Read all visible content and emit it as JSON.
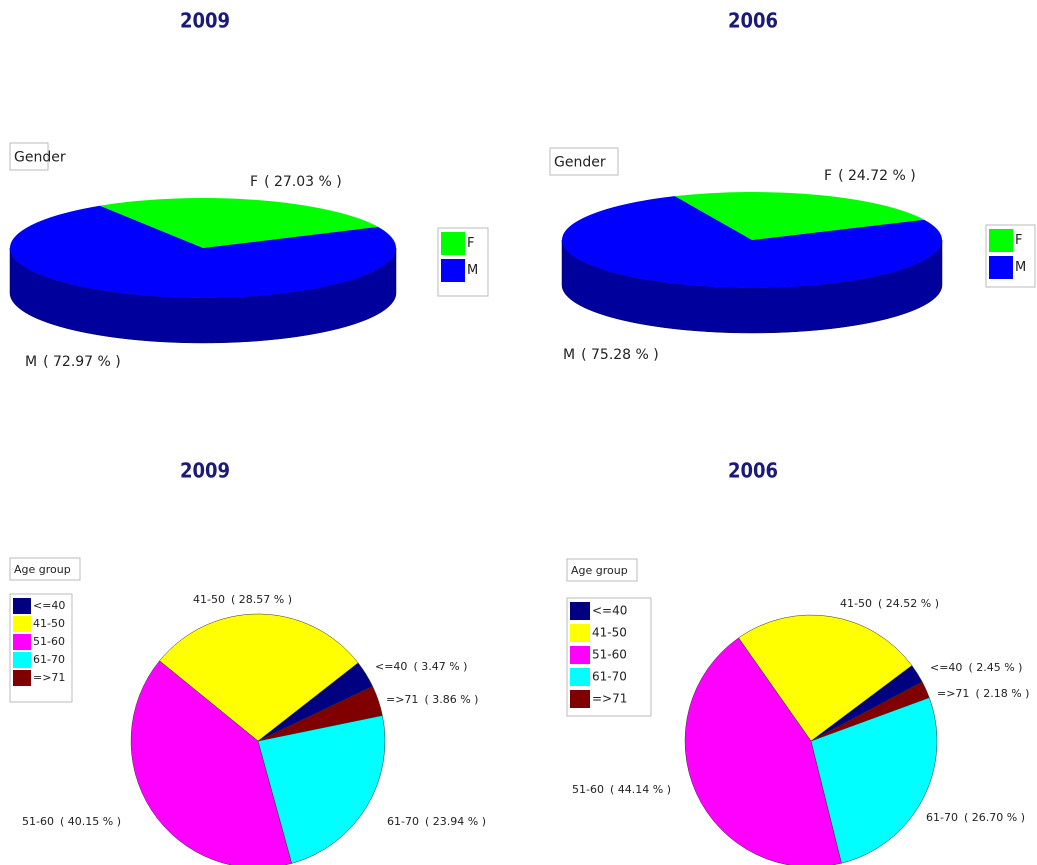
{
  "chart_data": [
    {
      "type": "pie",
      "three_d": true,
      "title": "2009",
      "legend_title": "Gender",
      "categories": [
        "F",
        "M"
      ],
      "values": [
        27.03,
        72.97
      ],
      "value_labels": [
        "( 27.03 % )",
        "( 72.97 % )"
      ],
      "colors": [
        "#00ff00",
        "#0000ff"
      ],
      "side_color": "#00009c"
    },
    {
      "type": "pie",
      "three_d": true,
      "title": "2006",
      "legend_title": "Gender",
      "categories": [
        "F",
        "M"
      ],
      "values": [
        24.72,
        75.28
      ],
      "value_labels": [
        "( 24.72 % )",
        "( 75.28 % )"
      ],
      "colors": [
        "#00ff00",
        "#0000ff"
      ],
      "side_color": "#00009c"
    },
    {
      "type": "pie",
      "three_d": false,
      "title": "2009",
      "legend_title": "Age group",
      "categories": [
        "<=40",
        "41-50",
        "51-60",
        "61-70",
        "=>71"
      ],
      "values": [
        3.47,
        28.57,
        40.15,
        23.94,
        3.86
      ],
      "value_labels": [
        "( 3.47 % )",
        "( 28.57 % )",
        "( 40.15 % )",
        "( 23.94 % )",
        "( 3.86 % )"
      ],
      "colors": [
        "#000080",
        "#ffff00",
        "#ff00ff",
        "#00ffff",
        "#800000"
      ]
    },
    {
      "type": "pie",
      "three_d": false,
      "title": "2006",
      "legend_title": "Age group",
      "categories": [
        "<=40",
        "41-50",
        "51-60",
        "61-70",
        "=>71"
      ],
      "values": [
        2.45,
        24.52,
        44.14,
        26.7,
        2.18
      ],
      "value_labels": [
        "( 2.45 % )",
        "( 24.52 % )",
        "( 44.14 % )",
        "( 26.70 % )",
        "( 2.18 % )"
      ],
      "colors": [
        "#000080",
        "#ffff00",
        "#ff00ff",
        "#00ffff",
        "#800000"
      ]
    }
  ]
}
